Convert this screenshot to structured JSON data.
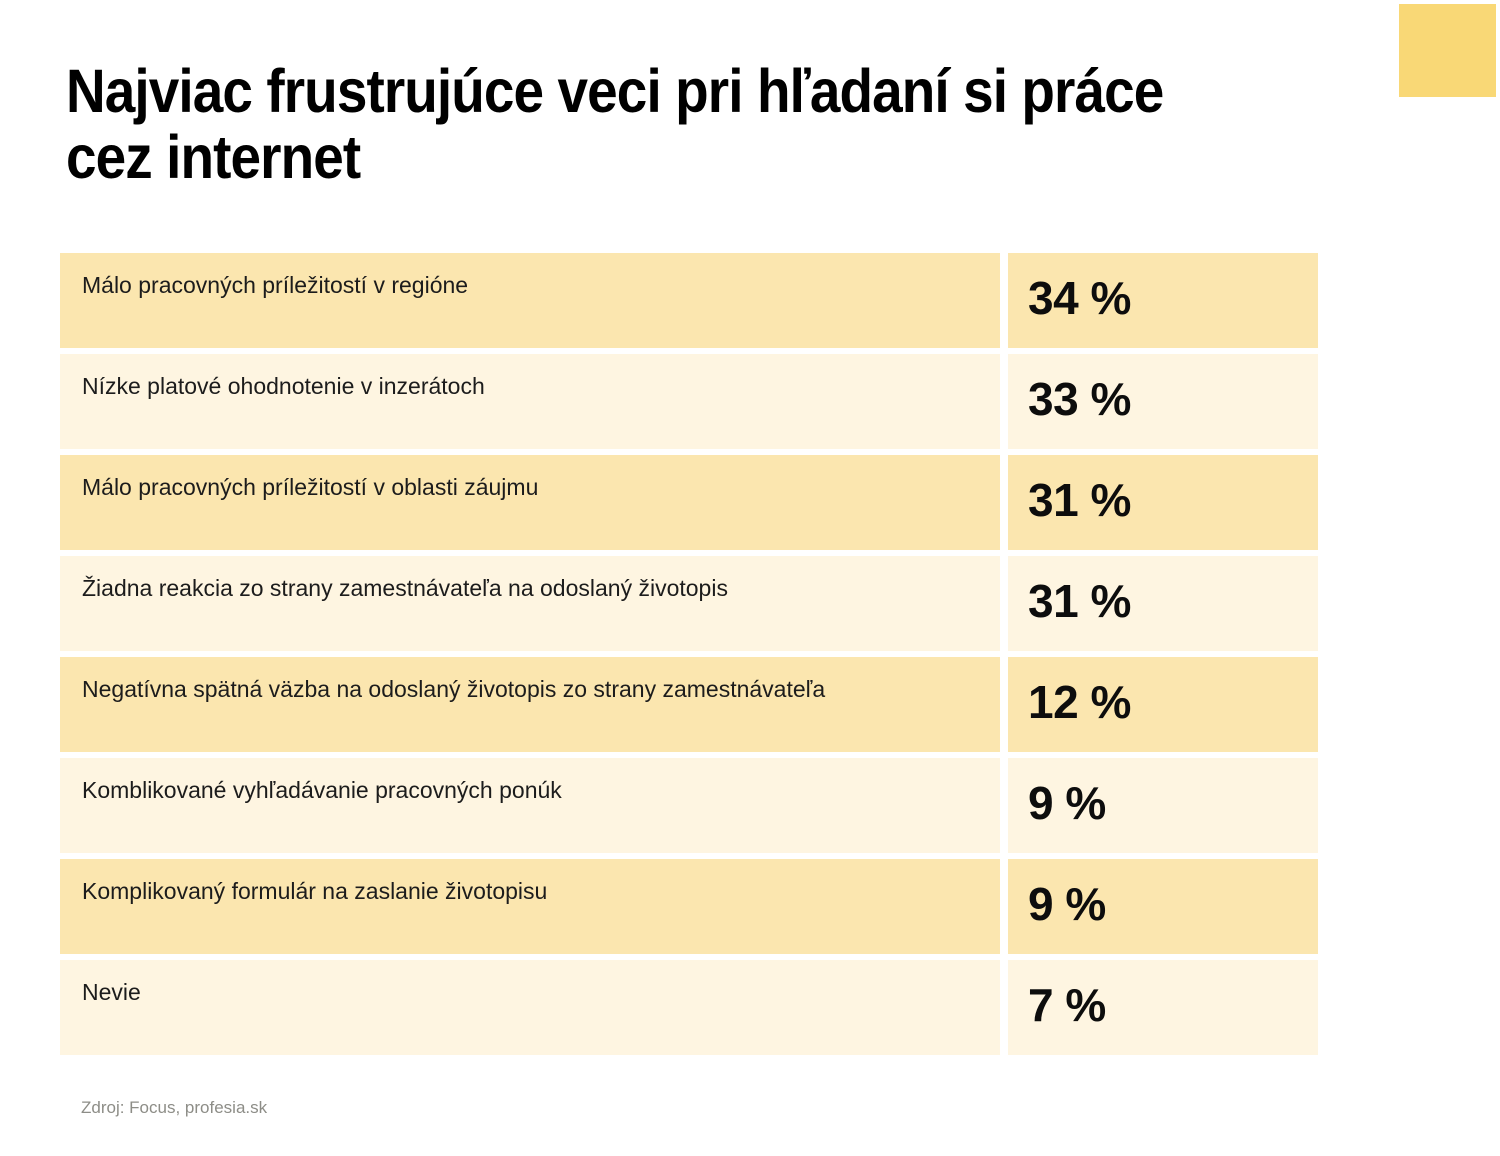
{
  "title": {
    "line1": "Najviac frustrujúce veci pri hľadaní si práce",
    "line2": "cez internet"
  },
  "table": {
    "rows": [
      {
        "label": "Málo pracovných príležitostí v regióne",
        "value_label": "34 %"
      },
      {
        "label": "Nízke platové  ohodnotenie v inzerátoch",
        "value_label": "33 %"
      },
      {
        "label": "Málo pracovných príležitostí v oblasti záujmu",
        "value_label": "31 %"
      },
      {
        "label": "Žiadna reakcia zo strany zamestnávateľa na odoslaný životopis",
        "value_label": "31 %"
      },
      {
        "label": "Negatívna spätná väzba na odoslaný životopis zo strany zamestnávateľa",
        "value_label": "12 %"
      },
      {
        "label": "Komblikované vyhľadávanie pracovných ponúk",
        "value_label": "9 %"
      },
      {
        "label": "Komplikovaný formulár na zaslanie životopisu",
        "value_label": "9 %"
      },
      {
        "label": "Nevie",
        "value_label": "7 %"
      }
    ]
  },
  "source": "Zdroj: Focus, profesia.sk",
  "colors": {
    "row_dark": "#FBE6AF",
    "row_light": "#FEF5E1",
    "brand_square": "#F9D876",
    "title_text": "#000000",
    "label_text": "#1C1C1C",
    "value_text": "#0D0D0D",
    "source_text": "#8D8D87"
  },
  "chart_data": {
    "type": "table",
    "title": "Najviac frustrujúce veci pri hľadaní si práce cez internet",
    "categories": [
      "Málo pracovných príležitostí v regióne",
      "Nízke platové  ohodnotenie v inzerátoch",
      "Málo pracovných príležitostí v oblasti záujmu",
      "Žiadna reakcia zo strany zamestnávateľa na odoslaný životopis",
      "Negatívna spätná väzba na odoslaný životopis zo strany zamestnávateľa",
      "Komblikované vyhľadávanie pracovných ponúk",
      "Komplikovaný formulár na zaslanie životopisu",
      "Nevie"
    ],
    "values": [
      34,
      33,
      31,
      31,
      12,
      9,
      9,
      7
    ],
    "unit": "%",
    "legend": false,
    "grid": false,
    "source": "Zdroj: Focus, profesia.sk"
  }
}
